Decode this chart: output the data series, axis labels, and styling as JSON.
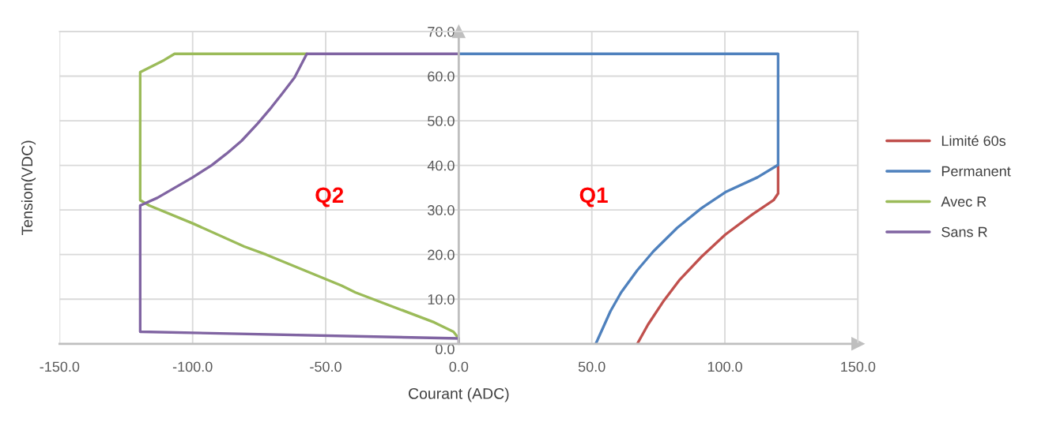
{
  "chart_data": {
    "type": "line",
    "xlabel": "Courant (ADC)",
    "ylabel": "Tension(VDC)",
    "xlim": [
      -150,
      150
    ],
    "ylim": [
      0,
      70
    ],
    "xticks": [
      {
        "value": -150,
        "label": "-150.0"
      },
      {
        "value": -100,
        "label": "-100.0"
      },
      {
        "value": -50,
        "label": "-50.0"
      },
      {
        "value": 0,
        "label": "0.0"
      },
      {
        "value": 50,
        "label": "50.0"
      },
      {
        "value": 100,
        "label": "100.0"
      },
      {
        "value": 150,
        "label": "150.0"
      }
    ],
    "yticks": [
      {
        "value": 0,
        "label": "0.0"
      },
      {
        "value": 10,
        "label": "10.0"
      },
      {
        "value": 20,
        "label": "20.0"
      },
      {
        "value": 30,
        "label": "30.0"
      },
      {
        "value": 40,
        "label": "40.0"
      },
      {
        "value": 50,
        "label": "50.0"
      },
      {
        "value": 60,
        "label": "60.0"
      },
      {
        "value": 70,
        "label": "70.0"
      }
    ],
    "grid": true,
    "legend": "right",
    "marker": "none",
    "line_style": "solid",
    "annotations": [
      "Q2",
      "Q1"
    ],
    "series": [
      {
        "name": "Limité 60s",
        "color": "#c0504d",
        "x": [
          120,
          120,
          118.3,
          110.3,
          100.2,
          91.2,
          83.1,
          77.1,
          71.1,
          67.1
        ],
        "values": [
          40.1,
          33.7,
          32.2,
          29.0,
          24.5,
          19.5,
          14.4,
          9.7,
          4.3,
          0
        ]
      },
      {
        "name": "Permanent",
        "color": "#4f81bd",
        "x": [
          0,
          120,
          120,
          112.2,
          100.2,
          91.2,
          82.1,
          73.1,
          67.1,
          61.0,
          57.0,
          51.5
        ],
        "values": [
          65,
          65,
          40.1,
          37.3,
          34.0,
          30.4,
          26.0,
          20.7,
          16.5,
          11.5,
          7.3,
          0
        ]
      },
      {
        "name": "Avec R",
        "color": "#9bbb59",
        "x": [
          0,
          -2,
          -9.2,
          -38.8,
          -43.9,
          -72.4,
          -80.6,
          -100,
          -116.3,
          -119.7,
          -119.7,
          -110.7,
          -106.8,
          -57.1
        ],
        "values": [
          1.2,
          2.7,
          4.8,
          11.5,
          13.0,
          20.0,
          21.8,
          27,
          31.0,
          32.2,
          60.9,
          63.6,
          65,
          65
        ]
      },
      {
        "name": "Sans R",
        "color": "#8064a2",
        "x": [
          0,
          0,
          -119.7,
          -119.7,
          -113.3,
          -100,
          -92.9,
          -87.3,
          -81.6,
          -75.5,
          -70.4,
          -66.3,
          -61.7,
          -57.1,
          0
        ],
        "values": [
          0,
          1.2,
          2.7,
          31.0,
          32.7,
          37.3,
          40,
          42.6,
          45.5,
          49.4,
          53.0,
          56.1,
          59.7,
          65,
          65
        ]
      }
    ]
  }
}
